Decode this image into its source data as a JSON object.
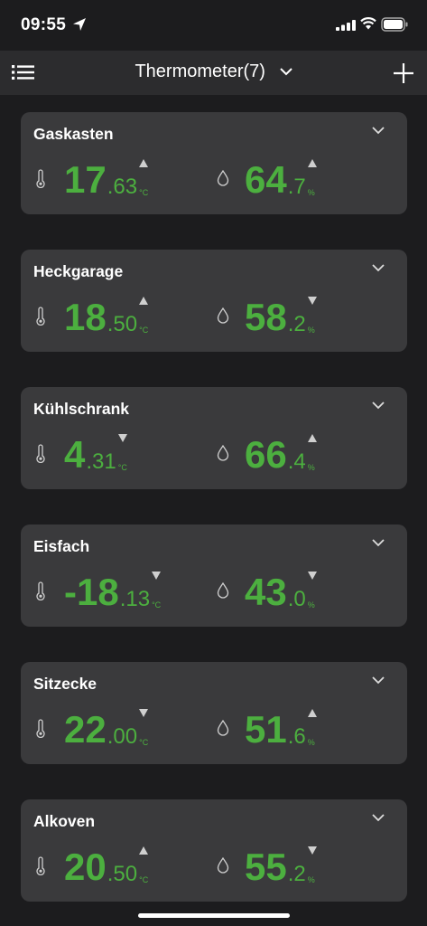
{
  "status": {
    "time": "09:55"
  },
  "header": {
    "title": "Thermometer(7)"
  },
  "sensors": [
    {
      "name": "Gaskasten",
      "temp_int": "17",
      "temp_dec": ".63",
      "temp_unit": "°C",
      "temp_trend": "up",
      "hum_int": "64",
      "hum_dec": ".7",
      "hum_unit": "%",
      "hum_trend": "up"
    },
    {
      "name": "Heckgarage",
      "temp_int": "18",
      "temp_dec": ".50",
      "temp_unit": "°C",
      "temp_trend": "up",
      "hum_int": "58",
      "hum_dec": ".2",
      "hum_unit": "%",
      "hum_trend": "down"
    },
    {
      "name": "Kühlschrank",
      "temp_int": "4",
      "temp_dec": ".31",
      "temp_unit": "°C",
      "temp_trend": "down",
      "hum_int": "66",
      "hum_dec": ".4",
      "hum_unit": "%",
      "hum_trend": "up"
    },
    {
      "name": "Eisfach",
      "temp_int": "-18",
      "temp_dec": ".13",
      "temp_unit": "°C",
      "temp_trend": "down",
      "hum_int": "43",
      "hum_dec": ".0",
      "hum_unit": "%",
      "hum_trend": "down"
    },
    {
      "name": "Sitzecke",
      "temp_int": "22",
      "temp_dec": ".00",
      "temp_unit": "°C",
      "temp_trend": "down",
      "hum_int": "51",
      "hum_dec": ".6",
      "hum_unit": "%",
      "hum_trend": "up"
    },
    {
      "name": "Alkoven",
      "temp_int": "20",
      "temp_dec": ".50",
      "temp_unit": "°C",
      "temp_trend": "up",
      "hum_int": "55",
      "hum_dec": ".2",
      "hum_unit": "%",
      "hum_trend": "down"
    }
  ],
  "colors": {
    "value": "#4caf3f",
    "card": "#3a3a3c",
    "background": "#1c1c1e",
    "navbar": "#2c2c2e",
    "trend": "#cfcfcf"
  },
  "icons": {
    "menu": "list-icon",
    "title_chevron": "chevron-down-icon",
    "add": "plus-icon",
    "card_chevron": "chevron-down-icon",
    "temperature": "thermometer-icon",
    "humidity": "droplet-icon"
  }
}
